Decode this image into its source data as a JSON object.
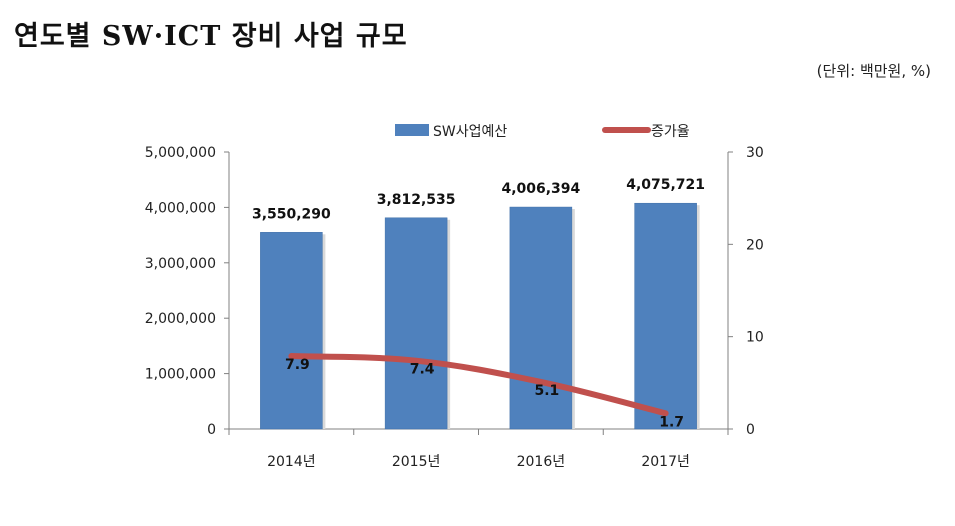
{
  "title": "연도별 SW·ICT 장비 사업 규모",
  "unit_note": "(단위: 백만원, %)",
  "colors": {
    "bar": "#4f81bd",
    "bar_edge": "#3f6fa8",
    "line": "#c0504d",
    "axis": "#808080"
  },
  "chart_data": {
    "type": "bar",
    "categories": [
      "2014년",
      "2015년",
      "2016년",
      "2017년"
    ],
    "series": [
      {
        "name": "SW사업예산",
        "type": "bar",
        "axis": "left",
        "values": [
          3550290,
          3812535,
          4006394,
          4075721
        ],
        "labels": [
          "3,550,290",
          "3,812,535",
          "4,006,394",
          "4,075,721"
        ]
      },
      {
        "name": "증가율",
        "type": "line",
        "axis": "right",
        "values": [
          7.9,
          7.4,
          5.1,
          1.7
        ],
        "labels": [
          "7.9",
          "7.4",
          "5.1",
          "1.7"
        ]
      }
    ],
    "y_left": {
      "min": 0,
      "max": 5000000,
      "ticks": [
        "0",
        "1,000,000",
        "2,000,000",
        "3,000,000",
        "4,000,000",
        "5,000,000"
      ]
    },
    "y_right": {
      "min": 0,
      "max": 30,
      "ticks": [
        "0",
        "10",
        "20",
        "30"
      ]
    },
    "legend_position": "top",
    "grid": false
  }
}
